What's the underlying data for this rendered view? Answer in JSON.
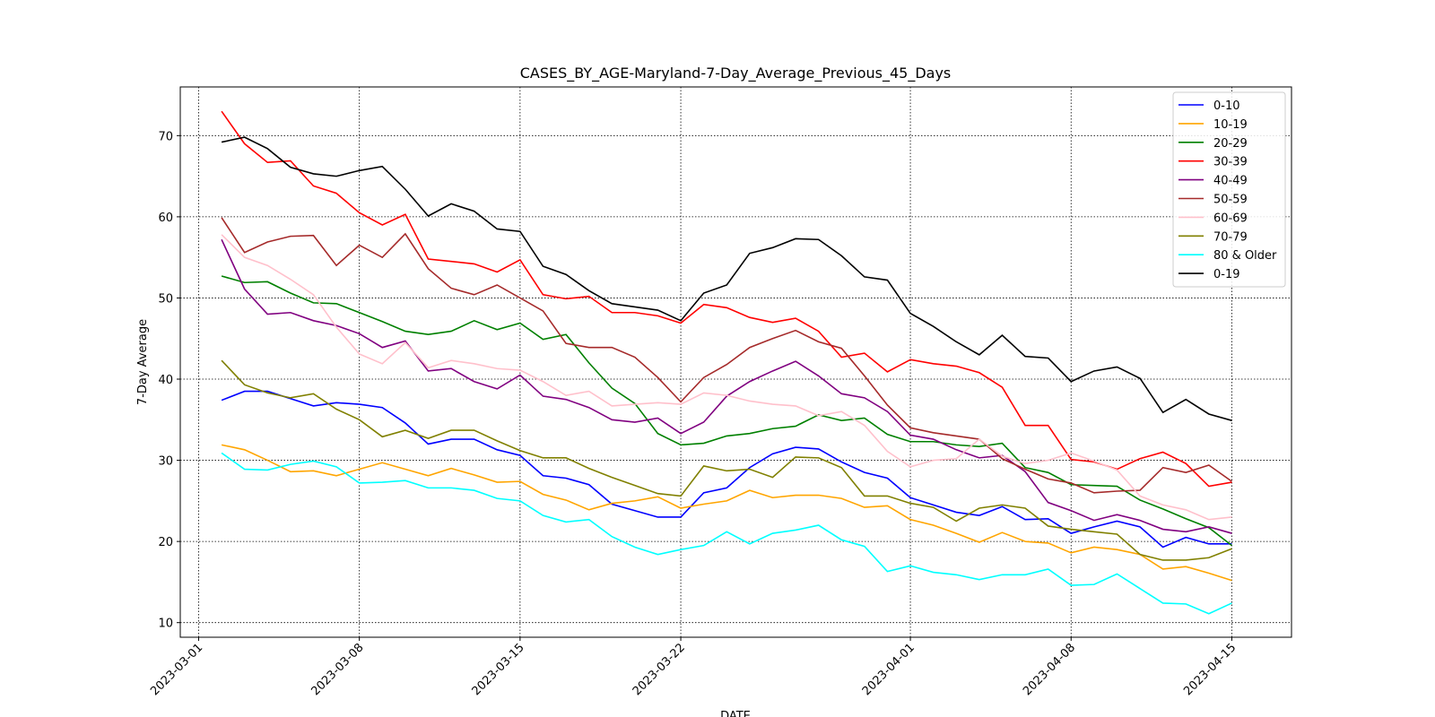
{
  "chart_data": {
    "type": "line",
    "title": "CASES_BY_AGE-Maryland-7-Day_Average_Previous_45_Days",
    "x_label": "DATE",
    "y_label": "7-Day Average",
    "x": [
      "2023-03-02",
      "2023-03-03",
      "2023-03-04",
      "2023-03-05",
      "2023-03-06",
      "2023-03-07",
      "2023-03-08",
      "2023-03-09",
      "2023-03-10",
      "2023-03-11",
      "2023-03-12",
      "2023-03-13",
      "2023-03-14",
      "2023-03-15",
      "2023-03-16",
      "2023-03-17",
      "2023-03-18",
      "2023-03-19",
      "2023-03-20",
      "2023-03-21",
      "2023-03-22",
      "2023-03-23",
      "2023-03-24",
      "2023-03-25",
      "2023-03-26",
      "2023-03-27",
      "2023-03-28",
      "2023-03-29",
      "2023-03-30",
      "2023-03-31",
      "2023-04-01",
      "2023-04-02",
      "2023-04-03",
      "2023-04-04",
      "2023-04-05",
      "2023-04-06",
      "2023-04-07",
      "2023-04-08",
      "2023-04-09",
      "2023-04-10",
      "2023-04-11",
      "2023-04-12",
      "2023-04-13",
      "2023-04-14",
      "2023-04-15"
    ],
    "xlim": [
      "2023-02-28T04:48:00Z",
      "2023-04-17T14:24:00Z"
    ],
    "xticks": [
      "2023-03-01",
      "2023-03-08",
      "2023-03-15",
      "2023-03-22",
      "2023-04-01",
      "2023-04-08",
      "2023-04-15"
    ],
    "ylim": [
      8.2,
      76
    ],
    "yticks": [
      10,
      20,
      30,
      40,
      50,
      60,
      70
    ],
    "grid": true,
    "legend": "upper right",
    "series": [
      {
        "name": "0-10",
        "color": "#0000ff",
        "values": [
          37.4,
          38.5,
          38.5,
          37.6,
          36.7,
          37.1,
          36.9,
          36.5,
          34.6,
          32.0,
          32.6,
          32.6,
          31.3,
          30.6,
          28.1,
          27.8,
          27.0,
          24.6,
          23.8,
          23.0,
          23.0,
          26.0,
          26.6,
          29.1,
          30.8,
          31.6,
          31.4,
          29.8,
          28.5,
          27.8,
          25.4,
          24.5,
          23.6,
          23.2,
          24.3,
          22.7,
          22.8,
          21.0,
          21.8,
          22.5,
          21.8,
          19.3,
          20.5,
          19.7,
          19.7
        ]
      },
      {
        "name": "10-19",
        "color": "#ffa500",
        "values": [
          31.9,
          31.3,
          30.0,
          28.6,
          28.7,
          28.1,
          28.9,
          29.7,
          28.9,
          28.1,
          29.0,
          28.2,
          27.3,
          27.4,
          25.8,
          25.1,
          23.9,
          24.7,
          25.0,
          25.5,
          24.1,
          24.6,
          25.0,
          26.3,
          25.4,
          25.7,
          25.7,
          25.3,
          24.2,
          24.4,
          22.7,
          22.0,
          21.0,
          19.9,
          21.1,
          20.0,
          19.8,
          18.6,
          19.3,
          19.0,
          18.4,
          16.6,
          16.9,
          16.1,
          15.2
        ]
      },
      {
        "name": "20-29",
        "color": "#008000",
        "values": [
          52.7,
          51.9,
          52.0,
          50.6,
          49.4,
          49.3,
          48.2,
          47.1,
          45.9,
          45.5,
          45.9,
          47.2,
          46.1,
          46.9,
          44.9,
          45.5,
          42.0,
          38.9,
          37.0,
          33.3,
          31.9,
          32.1,
          33.0,
          33.3,
          33.9,
          34.2,
          35.6,
          34.9,
          35.2,
          33.2,
          32.3,
          32.3,
          31.9,
          31.7,
          32.1,
          29.1,
          28.5,
          27.0,
          26.9,
          26.8,
          25.1,
          24.0,
          22.8,
          21.7,
          19.5
        ]
      },
      {
        "name": "30-39",
        "color": "#ff0000",
        "values": [
          73.0,
          69.0,
          66.7,
          66.9,
          63.8,
          62.9,
          60.5,
          59.0,
          60.3,
          54.8,
          54.5,
          54.2,
          53.2,
          54.7,
          50.4,
          49.9,
          50.2,
          48.2,
          48.2,
          47.8,
          46.9,
          49.2,
          48.8,
          47.6,
          47.0,
          47.5,
          45.9,
          42.7,
          43.2,
          40.9,
          42.4,
          41.9,
          41.6,
          40.8,
          39.0,
          34.3,
          34.3,
          30.1,
          29.8,
          28.9,
          30.2,
          31.0,
          29.6,
          26.8,
          27.3
        ]
      },
      {
        "name": "40-49",
        "color": "#800080",
        "values": [
          57.2,
          51.1,
          48.0,
          48.2,
          47.2,
          46.6,
          45.6,
          43.9,
          44.7,
          41.0,
          41.3,
          39.7,
          38.8,
          40.5,
          37.9,
          37.5,
          36.5,
          35.0,
          34.7,
          35.2,
          33.3,
          34.7,
          37.9,
          39.7,
          41.0,
          42.2,
          40.4,
          38.2,
          37.7,
          36.0,
          33.1,
          32.6,
          31.3,
          30.3,
          30.6,
          28.6,
          24.8,
          23.8,
          22.6,
          23.3,
          22.6,
          21.5,
          21.2,
          21.8,
          21.0
        ]
      },
      {
        "name": "50-59",
        "color": "#a52a2a",
        "values": [
          59.9,
          55.6,
          56.9,
          57.6,
          57.7,
          54.0,
          56.5,
          55.0,
          57.9,
          53.6,
          51.2,
          50.4,
          51.6,
          50.0,
          48.4,
          44.4,
          43.9,
          43.9,
          42.7,
          40.2,
          37.2,
          40.2,
          41.8,
          43.9,
          45.0,
          46.0,
          44.6,
          43.8,
          40.4,
          36.8,
          34.0,
          33.4,
          33.0,
          32.6,
          30.2,
          28.9,
          27.7,
          27.2,
          26.0,
          26.2,
          26.3,
          29.1,
          28.5,
          29.4,
          27.4
        ]
      },
      {
        "name": "60-69",
        "color": "#ffc0cb",
        "values": [
          57.8,
          55.0,
          54.0,
          52.3,
          50.4,
          46.4,
          43.1,
          41.9,
          44.5,
          41.4,
          42.3,
          41.9,
          41.3,
          41.1,
          39.7,
          38.0,
          38.5,
          36.7,
          36.9,
          37.1,
          36.9,
          38.3,
          38.0,
          37.3,
          36.9,
          36.7,
          35.5,
          36.0,
          34.3,
          31.1,
          29.2,
          30.0,
          30.2,
          32.6,
          30.5,
          29.6,
          30.0,
          30.9,
          29.9,
          28.8,
          25.6,
          24.5,
          23.9,
          22.7,
          23.0
        ]
      },
      {
        "name": "70-79",
        "color": "#808000",
        "values": [
          42.3,
          39.3,
          38.3,
          37.7,
          38.2,
          36.3,
          35.0,
          32.9,
          33.7,
          32.7,
          33.7,
          33.7,
          32.4,
          31.2,
          30.3,
          30.3,
          29.0,
          27.9,
          26.9,
          25.9,
          25.6,
          29.3,
          28.7,
          28.9,
          27.9,
          30.4,
          30.3,
          29.1,
          25.6,
          25.6,
          24.7,
          24.2,
          22.5,
          24.1,
          24.5,
          24.1,
          21.9,
          21.5,
          21.2,
          20.9,
          18.4,
          17.7,
          17.7,
          18.0,
          19.1
        ]
      },
      {
        "name": "80 & Older",
        "color": "#00ffff",
        "values": [
          30.9,
          28.9,
          28.8,
          29.5,
          29.9,
          29.2,
          27.2,
          27.3,
          27.5,
          26.6,
          26.6,
          26.3,
          25.3,
          25.0,
          23.2,
          22.4,
          22.7,
          20.6,
          19.3,
          18.4,
          19.0,
          19.5,
          21.2,
          19.7,
          21.0,
          21.4,
          22.0,
          20.2,
          19.4,
          16.3,
          17.0,
          16.2,
          15.9,
          15.3,
          15.9,
          15.9,
          16.6,
          14.6,
          14.7,
          16.0,
          14.2,
          12.4,
          12.3,
          11.1,
          12.4
        ]
      },
      {
        "name": "0-19",
        "color": "#000000",
        "values": [
          69.2,
          69.8,
          68.4,
          66.1,
          65.3,
          65.0,
          65.7,
          66.2,
          63.4,
          60.1,
          61.6,
          60.7,
          58.5,
          58.2,
          53.9,
          52.9,
          50.9,
          49.3,
          48.9,
          48.5,
          47.2,
          50.6,
          51.6,
          55.5,
          56.2,
          57.3,
          57.2,
          55.2,
          52.6,
          52.2,
          48.1,
          46.5,
          44.6,
          43.0,
          45.4,
          42.8,
          42.6,
          39.7,
          41.0,
          41.5,
          40.1,
          35.9,
          37.5,
          35.7,
          34.9
        ]
      }
    ]
  }
}
